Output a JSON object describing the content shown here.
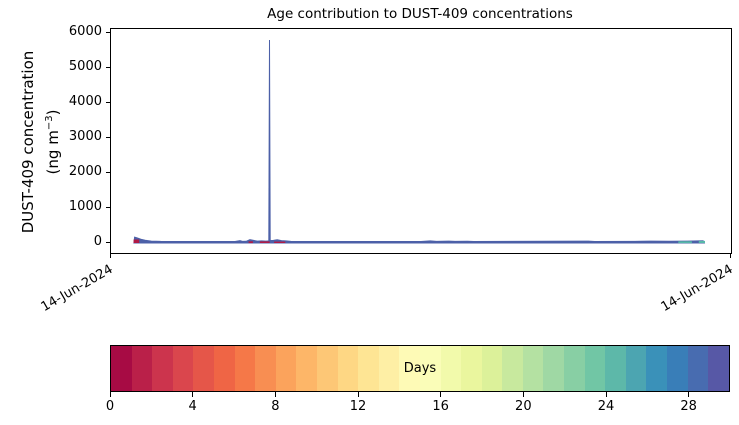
{
  "title": "Age contribution to DUST-409 concentrations",
  "y_axis": {
    "label_line1": "DUST-409 concentration",
    "label_line2_pre": "(ng m",
    "label_line2_sup": "−3",
    "label_line2_post": ")",
    "ticks": [
      "6000",
      "5000",
      "4000",
      "3000",
      "2000",
      "1000",
      "0"
    ]
  },
  "x_axis": {
    "ticks": [
      "14-Jun-2024",
      "14-Jun-2024"
    ]
  },
  "colorbar": {
    "label": "Days",
    "min": 0,
    "max": 30,
    "tick_labels": [
      "0",
      "4",
      "8",
      "12",
      "16",
      "20",
      "24",
      "28"
    ],
    "colors": [
      "#a70b44",
      "#ba2049",
      "#cc344d",
      "#da464d",
      "#e55649",
      "#ef6545",
      "#f57848",
      "#f88e52",
      "#fba35c",
      "#fdb668",
      "#fdc776",
      "#fed784",
      "#fee594",
      "#feefa5",
      "#fefab6",
      "#fafdb8",
      "#f2faab",
      "#eaf69e",
      "#dcf19a",
      "#c8e99e",
      "#b4e1a2",
      "#9fd8a4",
      "#88cfa4",
      "#71c6a5",
      "#5db8a9",
      "#4ca5b1",
      "#3a91b9",
      "#397eb8",
      "#486cb0",
      "#5758a6"
    ]
  },
  "chart_data": {
    "type": "area",
    "title": "Age contribution to DUST-409 concentrations",
    "xlabel": "",
    "ylabel": "DUST-409 concentration (ng m⁻³)",
    "ylim": [
      -300,
      6200
    ],
    "y_ticks": [
      0,
      1000,
      2000,
      3000,
      4000,
      5000,
      6000
    ],
    "x_tick_labels": [
      "14-Jun-2024",
      "14-Jun-2024"
    ],
    "grid": false,
    "legend": "none (discrete Spectral colorbar 0-30 days labeled Days)",
    "colorbar_range_days": [
      0,
      30
    ],
    "colorbar_bins": 30,
    "description": "Stacked air-mass-age contributions to DUST-409 concentration over one day; a dominant old-age (~28-30 day, blue) baseline of roughly 40-90 ng/m3 spans most of the axis, a single narrow spike reaches ~5800 ng/m3 about 26% across the axis, and small young-age (0-2 day, dark red) and mid-age (~20-25 day, teal) contributions appear near the start, mid-section and right end.",
    "spike": {
      "x_frac": 0.2556,
      "value": 5800
    },
    "series": [
      {
        "name": "old_age_total",
        "label": "old air (~28-30 days, blue) cumulative total",
        "color": "#4c60a8",
        "type": "filled_line",
        "points": [
          [
            0.037,
            0
          ],
          [
            0.038,
            170
          ],
          [
            0.042,
            150
          ],
          [
            0.048,
            110
          ],
          [
            0.055,
            80
          ],
          [
            0.065,
            55
          ],
          [
            0.08,
            45
          ],
          [
            0.2,
            42
          ],
          [
            0.208,
            70
          ],
          [
            0.212,
            45
          ],
          [
            0.218,
            50
          ],
          [
            0.224,
            95
          ],
          [
            0.23,
            75
          ],
          [
            0.236,
            55
          ],
          [
            0.243,
            60
          ],
          [
            0.25,
            55
          ],
          [
            0.2545,
            60
          ],
          [
            0.2556,
            5800
          ],
          [
            0.2567,
            70
          ],
          [
            0.262,
            75
          ],
          [
            0.268,
            90
          ],
          [
            0.275,
            70
          ],
          [
            0.282,
            60
          ],
          [
            0.29,
            45
          ],
          [
            0.3,
            42
          ],
          [
            0.5,
            42
          ],
          [
            0.515,
            60
          ],
          [
            0.525,
            45
          ],
          [
            0.545,
            55
          ],
          [
            0.555,
            45
          ],
          [
            0.575,
            50
          ],
          [
            0.585,
            42
          ],
          [
            0.77,
            55
          ],
          [
            0.78,
            42
          ],
          [
            0.855,
            50
          ],
          [
            0.87,
            55
          ],
          [
            0.9,
            50
          ],
          [
            0.93,
            55
          ],
          [
            0.955,
            65
          ],
          [
            0.957,
            0
          ]
        ]
      },
      {
        "name": "young_age",
        "label": "young air (0-2 days, dark red)",
        "color": "#b01a45",
        "type": "bars",
        "bars": [
          {
            "x": 0.0365,
            "w": 0.009,
            "v": 100
          },
          {
            "x": 0.222,
            "w": 0.007,
            "v": 50
          },
          {
            "x": 0.24,
            "w": 0.016,
            "v": 45
          },
          {
            "x": 0.263,
            "w": 0.018,
            "v": 40
          }
        ]
      },
      {
        "name": "mid_age",
        "label": "mid-age air (~20-25 days, teal)",
        "color": "#56b8a8",
        "type": "bars",
        "bars": [
          {
            "x": 0.915,
            "w": 0.022,
            "v": 50
          },
          {
            "x": 0.948,
            "w": 0.01,
            "v": 60
          }
        ]
      }
    ]
  }
}
